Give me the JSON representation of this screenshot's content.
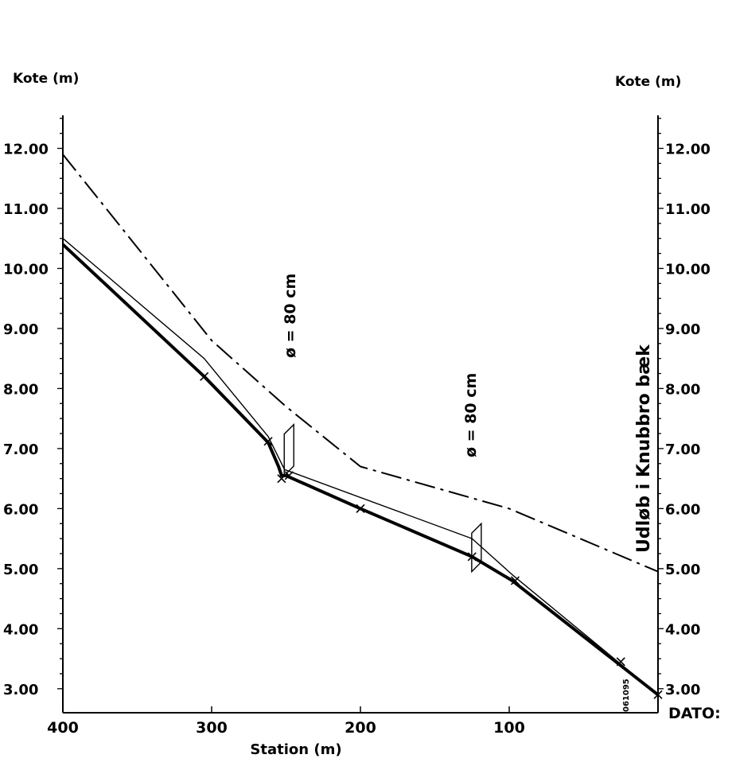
{
  "chart_data": {
    "type": "line",
    "title": "",
    "axis_label_left": "Kote  (m)",
    "axis_label_right": "Kote  (m)",
    "xlabel": "Station  (m)",
    "xlim": [
      400,
      0
    ],
    "ylim": [
      2.6,
      12.55
    ],
    "x_ticks": [
      400,
      300,
      200,
      100
    ],
    "x_tick_labels": [
      "400",
      "300",
      "200",
      "100"
    ],
    "y_ticks": [
      3,
      4,
      5,
      6,
      7,
      8,
      9,
      10,
      11,
      12
    ],
    "y_tick_labels": [
      "3.00",
      "4.00",
      "5.00",
      "6.00",
      "7.00",
      "8.00",
      "9.00",
      "10.00",
      "11.00",
      "12.00"
    ],
    "grid": false,
    "series": [
      {
        "style": "dash-dot",
        "points": [
          [
            400,
            11.9
          ],
          [
            300,
            8.8
          ],
          [
            250,
            7.7
          ],
          [
            200,
            6.7
          ],
          [
            100,
            6.0
          ],
          [
            0,
            4.95
          ]
        ]
      },
      {
        "style": "thin",
        "points": [
          [
            400,
            10.5
          ],
          [
            305,
            8.5
          ],
          [
            262,
            7.2
          ],
          [
            251,
            6.65
          ],
          [
            125,
            5.5
          ],
          [
            98,
            4.9
          ],
          [
            0,
            2.9
          ]
        ]
      },
      {
        "style": "thick",
        "points": [
          [
            400,
            10.4
          ],
          [
            305,
            8.2
          ],
          [
            262,
            7.1
          ],
          [
            255,
            6.7
          ],
          [
            253,
            6.55
          ],
          [
            250,
            6.55
          ],
          [
            200,
            6.0
          ],
          [
            125,
            5.2
          ],
          [
            98,
            4.8
          ],
          [
            0,
            2.9
          ]
        ]
      }
    ],
    "measured_points": [
      [
        305,
        8.2
      ],
      [
        262,
        7.12
      ],
      [
        253,
        6.5
      ],
      [
        248,
        6.55
      ],
      [
        200,
        6.0
      ],
      [
        125,
        5.2
      ],
      [
        96,
        4.8
      ],
      [
        25,
        3.45
      ],
      [
        0,
        2.9
      ]
    ],
    "annotations": {
      "pipe_1": "ø = 80 cm",
      "pipe_2": "ø = 80 cm",
      "outlet": "Udløb i Knubbro bæk",
      "stamp": "061095",
      "dato": "DATO:"
    },
    "pipes": [
      {
        "station": 248,
        "bottom": 6.55,
        "top": 7.4
      },
      {
        "station": 122,
        "bottom": 4.95,
        "top": 5.75
      }
    ]
  }
}
